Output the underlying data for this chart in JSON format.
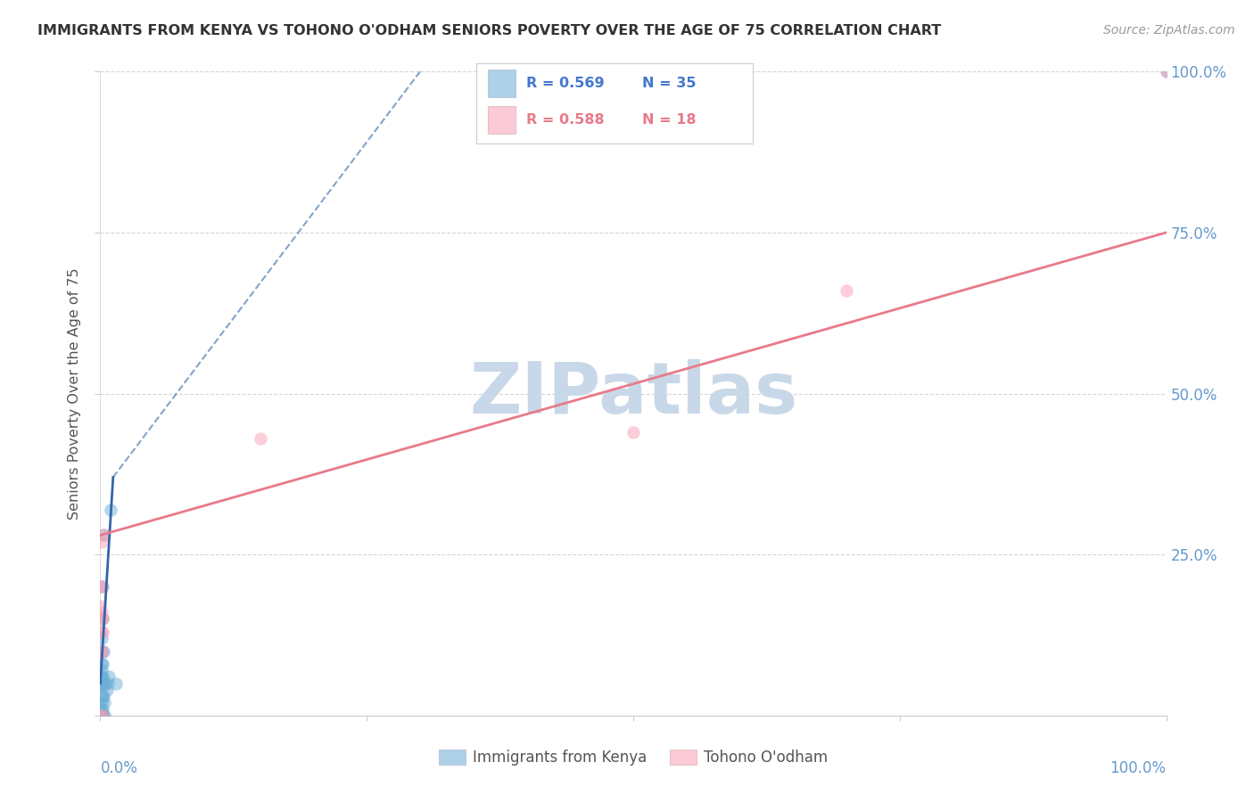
{
  "title": "IMMIGRANTS FROM KENYA VS TOHONO O'ODHAM SENIORS POVERTY OVER THE AGE OF 75 CORRELATION CHART",
  "source": "Source: ZipAtlas.com",
  "ylabel": "Seniors Poverty Over the Age of 75",
  "watermark": "ZIPatlas",
  "legend": {
    "kenya": {
      "R": 0.569,
      "N": 35
    },
    "tohono": {
      "R": 0.588,
      "N": 18
    }
  },
  "kenya_scatter": [
    [
      0.0,
      0.0
    ],
    [
      0.0,
      1.0
    ],
    [
      0.0,
      5.0
    ],
    [
      0.0,
      6.0
    ],
    [
      0.1,
      0.0
    ],
    [
      0.1,
      1.0
    ],
    [
      0.1,
      2.0
    ],
    [
      0.1,
      3.0
    ],
    [
      0.1,
      5.0
    ],
    [
      0.1,
      6.0
    ],
    [
      0.1,
      7.0
    ],
    [
      0.1,
      8.0
    ],
    [
      0.1,
      10.0
    ],
    [
      0.1,
      12.0
    ],
    [
      0.2,
      0.0
    ],
    [
      0.2,
      1.0
    ],
    [
      0.2,
      3.0
    ],
    [
      0.2,
      6.0
    ],
    [
      0.2,
      8.0
    ],
    [
      0.2,
      15.0
    ],
    [
      0.2,
      20.0
    ],
    [
      0.3,
      0.0
    ],
    [
      0.3,
      3.0
    ],
    [
      0.3,
      5.0
    ],
    [
      0.3,
      10.0
    ],
    [
      0.3,
      28.0
    ],
    [
      0.4,
      0.0
    ],
    [
      0.4,
      2.0
    ],
    [
      0.5,
      5.0
    ],
    [
      0.6,
      4.0
    ],
    [
      0.7,
      5.0
    ],
    [
      0.8,
      6.0
    ],
    [
      1.0,
      32.0
    ],
    [
      1.5,
      5.0
    ],
    [
      100.0,
      100.0
    ]
  ],
  "tohono_scatter": [
    [
      0.0,
      0.0
    ],
    [
      0.0,
      10.0
    ],
    [
      0.0,
      17.0
    ],
    [
      0.0,
      20.0
    ],
    [
      0.1,
      13.0
    ],
    [
      0.1,
      15.0
    ],
    [
      0.1,
      16.0
    ],
    [
      0.1,
      20.0
    ],
    [
      0.1,
      27.0
    ],
    [
      0.2,
      0.0
    ],
    [
      0.2,
      10.0
    ],
    [
      0.2,
      13.0
    ],
    [
      0.2,
      15.0
    ],
    [
      0.3,
      28.0
    ],
    [
      15.0,
      43.0
    ],
    [
      50.0,
      44.0
    ],
    [
      70.0,
      66.0
    ],
    [
      100.0,
      100.0
    ]
  ],
  "kenya_line_solid": {
    "x0": 0.0,
    "y0": 5.0,
    "x1": 1.2,
    "y1": 37.0
  },
  "kenya_line_dashed": {
    "x0": 1.2,
    "y0": 37.0,
    "x1": 30.0,
    "y1": 100.0
  },
  "tohono_line": {
    "x0": 0.0,
    "y0": 28.0,
    "x1": 100.0,
    "y1": 75.0
  },
  "xlim": [
    0.0,
    100.0
  ],
  "ylim": [
    0.0,
    100.0
  ],
  "bg_color": "#ffffff",
  "scatter_alpha": 0.5,
  "scatter_size": 110,
  "grid_color": "#cccccc",
  "title_color": "#333333",
  "axis_color": "#6699cc",
  "watermark_color": "#c8d8e8",
  "kenya_color": "#6baed6",
  "tohono_color": "#fa9fb5",
  "kenya_line_color": "#3366aa",
  "tohono_line_color": "#e87a8a",
  "legend_kenya_color": "#4477cc",
  "legend_tohono_color": "#e87a8a"
}
